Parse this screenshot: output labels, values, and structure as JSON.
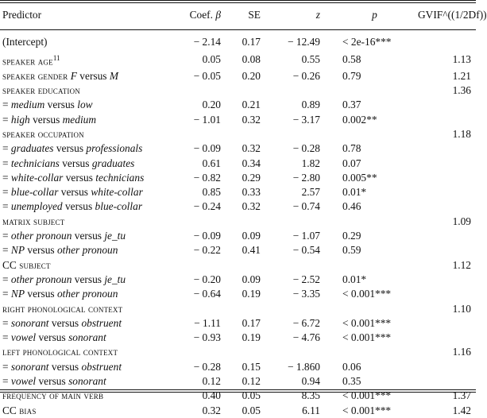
{
  "headers": {
    "predictor": "Predictor",
    "coef": "Coef.",
    "coef_symbol": "β",
    "se": "SE",
    "z": "z",
    "p": "p",
    "gvif": "GVIF^((1/2Df))"
  },
  "rows": [
    {
      "kind": "plain",
      "pred": "(Intercept)",
      "coef": "− 2.14",
      "se": "0.17",
      "z": "− 12.49",
      "p": "< 2e-16***",
      "gvif": ""
    },
    {
      "kind": "sc",
      "pred_sc": "speaker age",
      "sup": "11",
      "coef": "0.05",
      "se": "0.08",
      "z": "0.55",
      "p": "0.58",
      "gvif": "1.13"
    },
    {
      "kind": "sc_mix",
      "pred_sc": "speaker gender",
      "pred_tail_a": "F",
      "pred_tail_mid": " versus ",
      "pred_tail_b": "M",
      "coef": "− 0.05",
      "se": "0.20",
      "z": "− 0.26",
      "p": "0.79",
      "gvif": "1.21"
    },
    {
      "kind": "header",
      "pred_sc": "speaker education",
      "gvif": "1.36"
    },
    {
      "kind": "contrast",
      "a": "medium",
      "b": "low",
      "coef": "0.20",
      "se": "0.21",
      "z": "0.89",
      "p": "0.37",
      "gvif": ""
    },
    {
      "kind": "contrast",
      "a": "high",
      "b": "medium",
      "coef": "− 1.01",
      "se": "0.32",
      "z": "− 3.17",
      "p": "0.002**",
      "gvif": ""
    },
    {
      "kind": "header",
      "pred_sc": "speaker occupation",
      "gvif": "1.18"
    },
    {
      "kind": "contrast",
      "a": "graduates",
      "b": "professionals",
      "coef": "− 0.09",
      "se": "0.32",
      "z": "− 0.28",
      "p": "0.78",
      "gvif": ""
    },
    {
      "kind": "contrast",
      "a": "technicians",
      "b": "graduates",
      "coef": "0.61",
      "se": "0.34",
      "z": "1.82",
      "p": "0.07",
      "gvif": ""
    },
    {
      "kind": "contrast",
      "a": "white-collar",
      "b": "technicians",
      "coef": "− 0.82",
      "se": "0.29",
      "z": "− 2.80",
      "p": "0.005**",
      "gvif": ""
    },
    {
      "kind": "contrast",
      "a": "blue-collar",
      "b": "white-collar",
      "coef": "0.85",
      "se": "0.33",
      "z": "2.57",
      "p": "0.01*",
      "gvif": ""
    },
    {
      "kind": "contrast",
      "a": "unemployed",
      "b": "blue-collar",
      "coef": "− 0.24",
      "se": "0.32",
      "z": "− 0.74",
      "p": "0.46",
      "gvif": ""
    },
    {
      "kind": "header",
      "pred_sc": "matrix subject",
      "gvif": "1.09"
    },
    {
      "kind": "contrast",
      "a": "other pronoun",
      "b": "je_tu",
      "coef": "− 0.09",
      "se": "0.09",
      "z": "− 1.07",
      "p": "0.29",
      "gvif": ""
    },
    {
      "kind": "contrast",
      "a": "NP",
      "b": "other pronoun",
      "coef": "− 0.22",
      "se": "0.41",
      "z": "− 0.54",
      "p": "0.59",
      "gvif": ""
    },
    {
      "kind": "header_cc",
      "pred_pre": "CC",
      "pred_sc": "subject",
      "gvif": "1.12"
    },
    {
      "kind": "contrast",
      "a": "other pronoun",
      "b": "je_tu",
      "coef": "− 0.20",
      "se": "0.09",
      "z": "− 2.52",
      "p": "0.01*",
      "gvif": ""
    },
    {
      "kind": "contrast",
      "a": "NP",
      "b": "other pronoun",
      "coef": "− 0.64",
      "se": "0.19",
      "z": "− 3.35",
      "p": "< 0.001***",
      "gvif": ""
    },
    {
      "kind": "header",
      "pred_sc": "right phonological context",
      "gvif": "1.10"
    },
    {
      "kind": "contrast",
      "a": "sonorant",
      "b": "obstruent",
      "coef": "− 1.11",
      "se": "0.17",
      "z": "− 6.72",
      "p": "< 0.001***",
      "gvif": ""
    },
    {
      "kind": "contrast",
      "a": "vowel",
      "b": "sonorant",
      "coef": "− 0.93",
      "se": "0.19",
      "z": "− 4.76",
      "p": "< 0.001***",
      "gvif": ""
    },
    {
      "kind": "header",
      "pred_sc": "left phonological context",
      "gvif": "1.16"
    },
    {
      "kind": "contrast",
      "a": "sonorant",
      "b": "obstruent",
      "coef": "− 0.28",
      "se": "0.15",
      "z": "− 1.860",
      "p": "0.06",
      "gvif": ""
    },
    {
      "kind": "contrast",
      "a": "vowel",
      "b": "sonorant",
      "coef": "0.12",
      "se": "0.12",
      "z": "0.94",
      "p": "0.35",
      "gvif": ""
    },
    {
      "kind": "sc",
      "pred_sc": "frequency of main verb",
      "sup": "",
      "coef": "0.40",
      "se": "0.05",
      "z": "8.35",
      "p": "< 0.001***",
      "gvif": "1.37"
    },
    {
      "kind": "header_cc_full",
      "pred_pre": "CC",
      "pred_sc": "bias",
      "coef": "0.32",
      "se": "0.05",
      "z": "6.11",
      "p": "< 0.001***",
      "gvif": "1.42"
    }
  ],
  "contrast_eq": "= ",
  "contrast_versus": " versus "
}
